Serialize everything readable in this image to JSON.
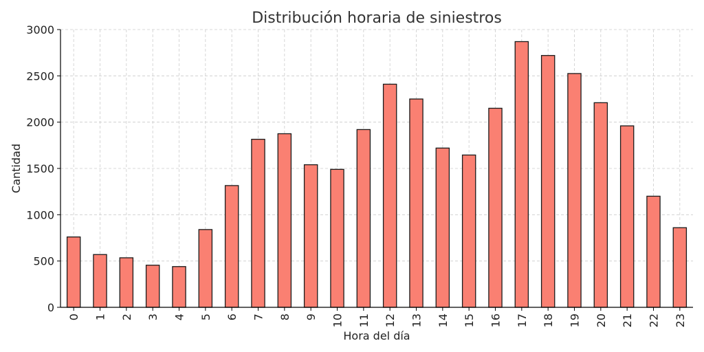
{
  "chart_data": {
    "type": "bar",
    "title": "Distribución horaria de siniestros",
    "xlabel": "Hora del día",
    "ylabel": "Cantidad",
    "categories": [
      "0",
      "1",
      "2",
      "3",
      "4",
      "5",
      "6",
      "7",
      "8",
      "9",
      "10",
      "11",
      "12",
      "13",
      "14",
      "15",
      "16",
      "17",
      "18",
      "19",
      "20",
      "21",
      "22",
      "23"
    ],
    "values": [
      760,
      570,
      535,
      455,
      440,
      840,
      1315,
      1815,
      1875,
      1540,
      1490,
      1920,
      2410,
      2250,
      1720,
      1645,
      2150,
      2870,
      2720,
      2525,
      2210,
      1960,
      1200,
      860
    ],
    "ylim": [
      0,
      3000
    ],
    "yticks": [
      0,
      500,
      1000,
      1500,
      2000,
      2500,
      3000
    ],
    "grid": true,
    "bar_color": "#fa8072",
    "edge_color": "#1a1a1a"
  }
}
